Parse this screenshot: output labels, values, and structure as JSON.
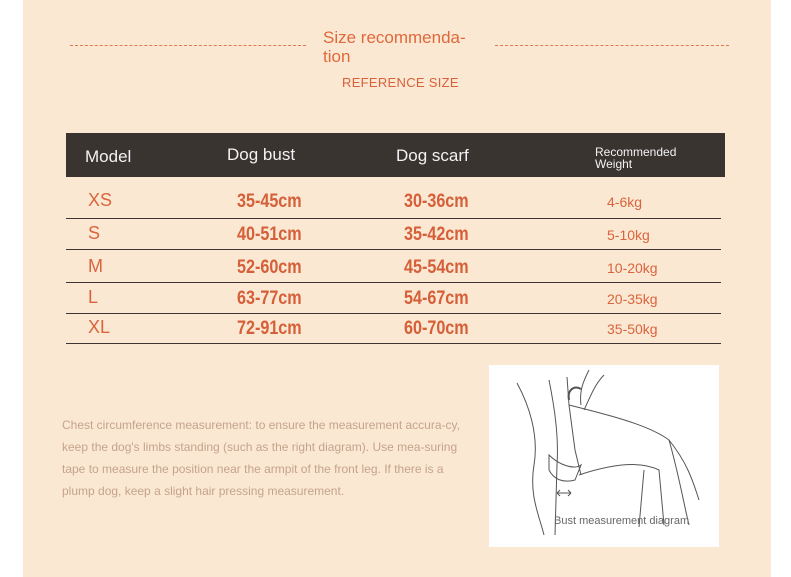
{
  "header": {
    "title": "Size recommenda-tion",
    "title_line1": "Size recommenda-",
    "title_line2": "tion",
    "subtitle": "REFERENCE SIZE"
  },
  "table": {
    "columns": [
      "Model",
      "Dog bust",
      "Dog scarf",
      "Recommended Weight"
    ],
    "rows": [
      {
        "model": "XS",
        "bust": "35-45cm",
        "scarf": "30-36cm",
        "weight": "4-6kg"
      },
      {
        "model": "S",
        "bust": "40-51cm",
        "scarf": "35-42cm",
        "weight": "5-10kg"
      },
      {
        "model": "M",
        "bust": "52-60cm",
        "scarf": "45-54cm",
        "weight": "10-20kg"
      },
      {
        "model": "L",
        "bust": "63-77cm",
        "scarf": "54-67cm",
        "weight": "20-35kg"
      },
      {
        "model": "XL",
        "bust": "72-91cm",
        "scarf": "60-70cm",
        "weight": "35-50kg"
      }
    ]
  },
  "note": "Chest circumference measurement: to ensure the measurement accura-cy, keep the dog's limbs standing (such as the right diagram). Use mea-suring tape to measure the position near the armpit of the front leg. If there is a plump dog, keep a slight hair pressing measurement.",
  "diagram": {
    "caption": "Bust measurement diagram"
  },
  "colors": {
    "background": "#fbe8d3",
    "accent": "#d9643d",
    "header_bg": "#3a3431"
  }
}
